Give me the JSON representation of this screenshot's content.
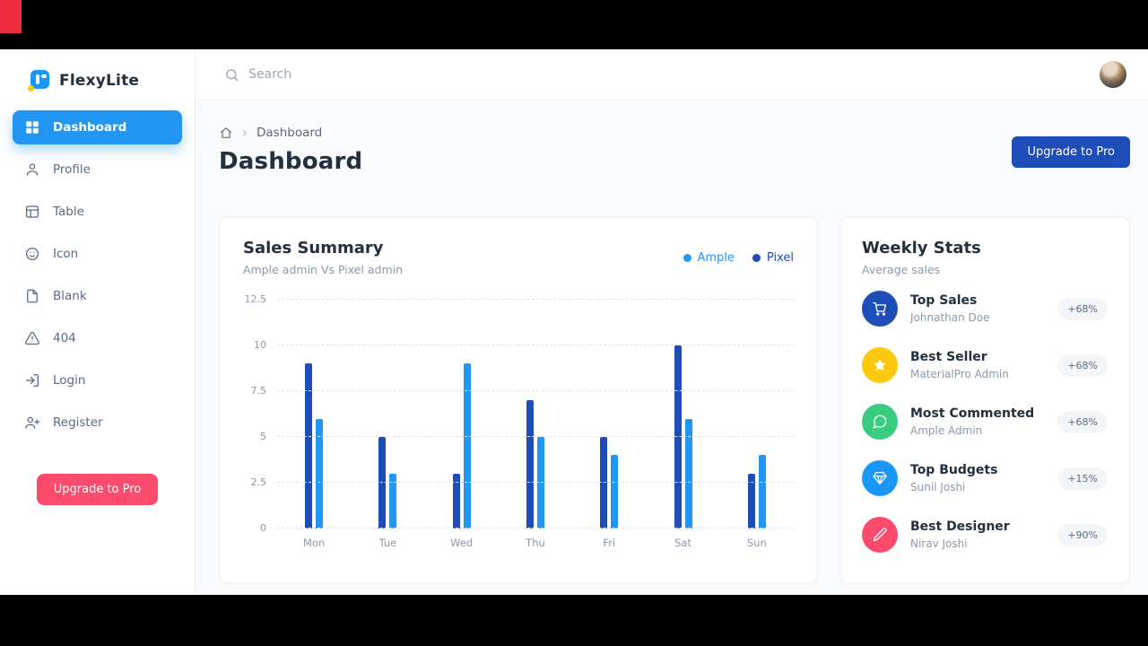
{
  "app": {
    "brand": "FlexyLite"
  },
  "sidebar": {
    "items": [
      {
        "label": "Dashboard",
        "active": true
      },
      {
        "label": "Profile"
      },
      {
        "label": "Table"
      },
      {
        "label": "Icon"
      },
      {
        "label": "Blank"
      },
      {
        "label": "404"
      },
      {
        "label": "Login"
      },
      {
        "label": "Register"
      }
    ],
    "upgrade_label": "Upgrade to Pro"
  },
  "header": {
    "search_placeholder": "Search"
  },
  "breadcrumb": {
    "current": "Dashboard"
  },
  "page": {
    "title": "Dashboard",
    "upgrade_label": "Upgrade to Pro"
  },
  "sales_card": {
    "title": "Sales Summary",
    "subtitle": "Ample admin Vs Pixel admin",
    "legend": [
      {
        "label": "Ample",
        "color": "#2196f3"
      },
      {
        "label": "Pixel",
        "color": "#1e4db7"
      }
    ]
  },
  "chart_data": {
    "type": "bar",
    "title": "Sales Summary",
    "categories": [
      "Mon",
      "Tue",
      "Wed",
      "Thu",
      "Fri",
      "Sat",
      "Sun"
    ],
    "series": [
      {
        "name": "Pixel",
        "color": "#1e4db7",
        "values": [
          9,
          5,
          3,
          7,
          5,
          10,
          3
        ]
      },
      {
        "name": "Ample",
        "color": "#2196f3",
        "values": [
          6,
          3,
          9,
          5,
          4,
          6,
          4
        ]
      }
    ],
    "ylim": [
      0,
      12.5
    ],
    "yticks": [
      0,
      2.5,
      5,
      7.5,
      10,
      12.5
    ],
    "grid": "dashed-horizontal",
    "legend_position": "top-right"
  },
  "weekly_card": {
    "title": "Weekly Stats",
    "subtitle": "Average sales",
    "items": [
      {
        "title": "Top Sales",
        "subtitle": "Johnathan Doe",
        "badge": "+68%",
        "icon": "cart-icon",
        "color": "#1e4db7"
      },
      {
        "title": "Best Seller",
        "subtitle": "MaterialPro Admin",
        "badge": "+68%",
        "icon": "star-icon",
        "color": "#fdc90f"
      },
      {
        "title": "Most Commented",
        "subtitle": "Ample Admin",
        "badge": "+68%",
        "icon": "comment-icon",
        "color": "#39cb7f"
      },
      {
        "title": "Top Budgets",
        "subtitle": "Sunil Joshi",
        "badge": "+15%",
        "icon": "diamond-icon",
        "color": "#1a97f5"
      },
      {
        "title": "Best Designer",
        "subtitle": "Nirav Joshi",
        "badge": "+90%",
        "icon": "pen-icon",
        "color": "#fc4b6c"
      }
    ]
  }
}
